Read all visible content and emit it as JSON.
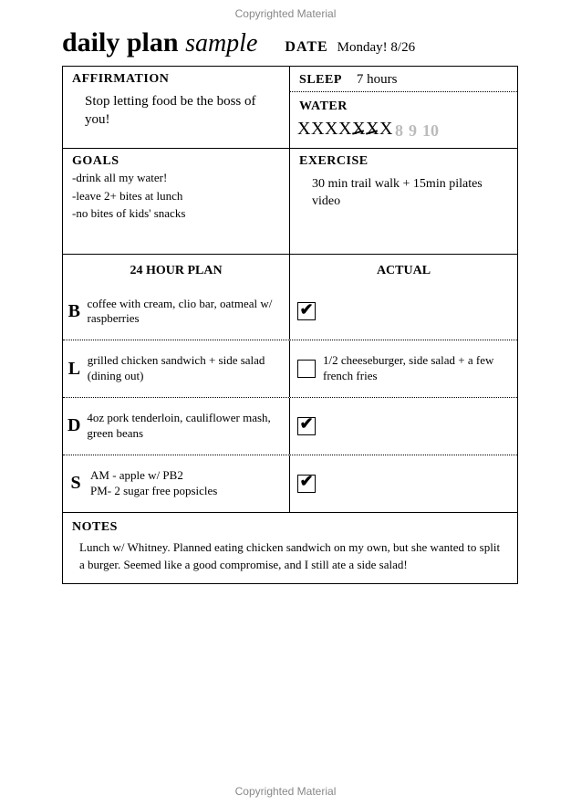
{
  "copyright": "Copyrighted Material",
  "title_main": "daily plan",
  "title_sample": "sample",
  "date_label": "DATE",
  "date_value": "Monday! 8/26",
  "affirmation": {
    "label": "AFFIRMATION",
    "text": "Stop letting food be the boss of you!"
  },
  "sleep": {
    "label": "SLEEP",
    "value": "7 hours"
  },
  "water": {
    "label": "WATER",
    "cells": [
      {
        "n": "1",
        "crossed": true
      },
      {
        "n": "2",
        "crossed": true
      },
      {
        "n": "3",
        "crossed": true
      },
      {
        "n": "4",
        "crossed": true
      },
      {
        "n": "5",
        "crossed": true,
        "strike": true
      },
      {
        "n": "6",
        "crossed": true,
        "strike": true
      },
      {
        "n": "7",
        "crossed": true
      },
      {
        "n": "8",
        "crossed": false
      },
      {
        "n": "9",
        "crossed": false
      },
      {
        "n": "10",
        "crossed": false
      }
    ]
  },
  "goals": {
    "label": "GOALS",
    "lines": [
      "-drink all my water!",
      "-leave 2+ bites at lunch",
      "-no bites of kids' snacks"
    ]
  },
  "exercise": {
    "label": "EXERCISE",
    "text": "30 min trail walk + 15min pilates video"
  },
  "plan": {
    "header_plan": "24 HOUR PLAN",
    "header_actual": "ACTUAL",
    "meals": [
      {
        "code": "B",
        "plan": "coffee with cream, clio bar, oatmeal w/ raspberries",
        "checked": true,
        "actual": ""
      },
      {
        "code": "L",
        "plan": "grilled chicken sandwich + side salad (dining out)",
        "checked": false,
        "actual": "1/2 cheeseburger, side salad + a few french fries"
      },
      {
        "code": "D",
        "plan": "4oz pork tenderloin, cauliflower mash, green beans",
        "checked": true,
        "actual": ""
      },
      {
        "code": "S",
        "plan": "AM - apple w/ PB2\nPM- 2 sugar free popsicles",
        "checked": true,
        "actual": ""
      }
    ]
  },
  "notes": {
    "label": "NOTES",
    "text": "Lunch w/ Whitney. Planned eating chicken sandwich on my own, but she wanted to split a burger. Seemed like a good compromise, and I still ate a side salad!"
  }
}
